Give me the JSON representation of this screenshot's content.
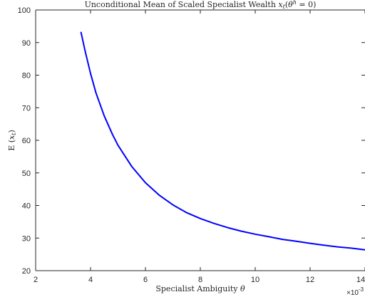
{
  "chart_data": {
    "type": "line",
    "title": "Unconditional Mean of Scaled Specialist Wealth x_t(θ^h = 0)",
    "xlabel": "Specialist Ambiguity θ",
    "ylabel": "E (x_t)",
    "x_multiplier_label": "×10^-3",
    "xlim": [
      0.002,
      0.014
    ],
    "ylim": [
      20,
      100
    ],
    "x_ticks": [
      0.002,
      0.004,
      0.006,
      0.008,
      0.01,
      0.012,
      0.014
    ],
    "x_tick_labels": [
      "2",
      "4",
      "6",
      "8",
      "10",
      "12",
      "14"
    ],
    "y_ticks": [
      20,
      30,
      40,
      50,
      60,
      70,
      80,
      90,
      100
    ],
    "y_tick_labels": [
      "20",
      "30",
      "40",
      "50",
      "60",
      "70",
      "80",
      "90",
      "100"
    ],
    "grid": false,
    "series": [
      {
        "color": "#0000ff",
        "x": [
          0.00365,
          0.0038,
          0.004,
          0.0042,
          0.0045,
          0.0048,
          0.005,
          0.0055,
          0.006,
          0.0065,
          0.007,
          0.0075,
          0.008,
          0.0085,
          0.009,
          0.0095,
          0.01,
          0.0105,
          0.011,
          0.0115,
          0.012,
          0.0125,
          0.013,
          0.0135,
          0.014
        ],
        "y": [
          93.3,
          87.5,
          80.5,
          74.5,
          67.5,
          61.8,
          58.5,
          52.0,
          47.0,
          43.2,
          40.2,
          37.8,
          36.0,
          34.5,
          33.2,
          32.1,
          31.2,
          30.4,
          29.6,
          29.0,
          28.4,
          27.8,
          27.3,
          26.9,
          26.4
        ]
      }
    ]
  }
}
